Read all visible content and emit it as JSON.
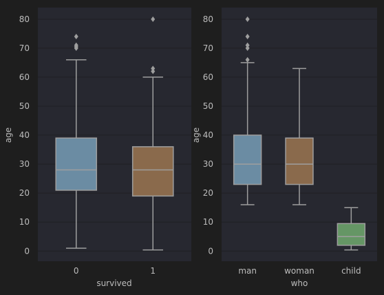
{
  "chart_data": [
    {
      "type": "box",
      "xlabel": "survived",
      "ylabel": "age",
      "ylim": [
        -3.5,
        84
      ],
      "yticks": [
        0,
        10,
        20,
        30,
        40,
        50,
        60,
        70,
        80
      ],
      "grid": true,
      "categories": [
        "0",
        "1"
      ],
      "boxes": [
        {
          "category": "0",
          "whisker_low": 1,
          "q1": 21,
          "median": 28,
          "q3": 39,
          "whisker_high": 66,
          "outliers": [
            70,
            70.5,
            71,
            74
          ],
          "color": "#6b8ca3"
        },
        {
          "category": "1",
          "whisker_low": 0.4,
          "q1": 19,
          "median": 28,
          "q3": 36,
          "whisker_high": 60,
          "outliers": [
            62,
            63,
            80
          ],
          "color": "#8a6a4c"
        }
      ]
    },
    {
      "type": "box",
      "xlabel": "who",
      "ylabel": "age",
      "ylim": [
        -3.5,
        84
      ],
      "yticks": [
        0,
        10,
        20,
        30,
        40,
        50,
        60,
        70,
        80
      ],
      "grid": true,
      "categories": [
        "man",
        "woman",
        "child"
      ],
      "boxes": [
        {
          "category": "man",
          "whisker_low": 16,
          "q1": 23,
          "median": 30,
          "q3": 40,
          "whisker_high": 65,
          "outliers": [
            66,
            70,
            71,
            74,
            80
          ],
          "color": "#6b8ca3"
        },
        {
          "category": "woman",
          "whisker_low": 16,
          "q1": 23,
          "median": 30,
          "q3": 39,
          "whisker_high": 63,
          "outliers": [],
          "color": "#8a6a4c"
        },
        {
          "category": "child",
          "whisker_low": 0.4,
          "q1": 2,
          "median": 5,
          "q3": 9.5,
          "whisker_high": 15,
          "outliers": [],
          "color": "#659665"
        }
      ]
    }
  ]
}
